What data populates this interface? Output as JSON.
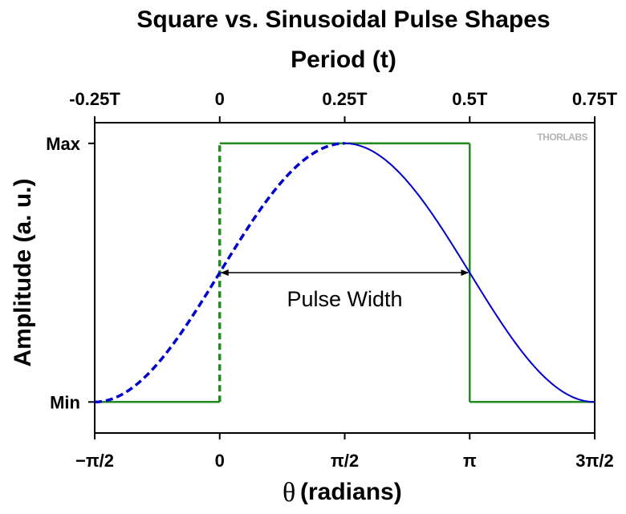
{
  "chart_data": {
    "type": "line",
    "title": "Square vs. Sinusoidal Pulse Shapes",
    "top_axis": {
      "label": "Period (t)",
      "ticks": [
        "-0.25T",
        "0",
        "0.25T",
        "0.5T",
        "0.75T"
      ]
    },
    "x_axis": {
      "symbol": "θ",
      "label": "(radians)",
      "ticks": [
        "−π/2",
        "0",
        "π/2",
        "π",
        "3π/2"
      ],
      "tick_values": [
        -1.5708,
        0,
        1.5708,
        3.1416,
        4.7124
      ],
      "xlim": [
        -1.5708,
        4.7124
      ]
    },
    "y_axis": {
      "label": "Amplitude (a. u.)",
      "ticks": [
        "Min",
        "Max"
      ],
      "tick_values": [
        0,
        1
      ],
      "ylim": [
        -0.12,
        1.08
      ]
    },
    "series": [
      {
        "color": "#0000cc",
        "style": "sinusoid",
        "dashed_range": [
          -1.5708,
          1.5708
        ],
        "solid_range": [
          1.5708,
          4.7124
        ]
      },
      {
        "color": "#228b22",
        "style": "square",
        "points": [
          [
            -1.5708,
            0
          ],
          [
            0,
            0
          ],
          [
            0,
            1
          ],
          [
            3.1416,
            1
          ],
          [
            3.1416,
            0
          ],
          [
            4.7124,
            0
          ]
        ],
        "dashed_segment": [
          [
            0,
            0
          ],
          [
            0,
            1
          ]
        ]
      }
    ],
    "annotation": {
      "text": "Pulse Width",
      "from_x": 0,
      "to_x": 3.1416,
      "y": 0.5
    },
    "grid": false,
    "logo_text": "THORLABS"
  }
}
